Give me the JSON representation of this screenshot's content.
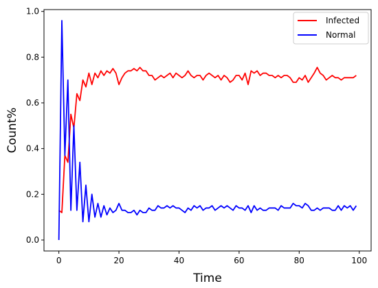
{
  "chart_data": {
    "type": "line",
    "title": "",
    "xlabel": "Time",
    "ylabel": "Count%",
    "xlim": [
      -4.95,
      103.95
    ],
    "ylim": [
      -0.048,
      1.008
    ],
    "xticks": [
      0,
      20,
      40,
      60,
      80,
      100
    ],
    "yticks": [
      0.0,
      0.2,
      0.4,
      0.6,
      0.8,
      1.0
    ],
    "xtick_labels": [
      "0",
      "20",
      "40",
      "60",
      "80",
      "100"
    ],
    "ytick_labels": [
      "0.0",
      "0.2",
      "0.4",
      "0.6",
      "0.8",
      "1.0"
    ],
    "grid": false,
    "legend_position": "top-right",
    "series": [
      {
        "name": "Infected",
        "color": "#ff0000",
        "x": [
          0,
          1,
          2,
          3,
          4,
          5,
          6,
          7,
          8,
          9,
          10,
          11,
          12,
          13,
          14,
          15,
          16,
          17,
          18,
          19,
          20,
          21,
          22,
          23,
          24,
          25,
          26,
          27,
          28,
          29,
          30,
          31,
          32,
          33,
          34,
          35,
          36,
          37,
          38,
          39,
          40,
          41,
          42,
          43,
          44,
          45,
          46,
          47,
          48,
          49,
          50,
          51,
          52,
          53,
          54,
          55,
          56,
          57,
          58,
          59,
          60,
          61,
          62,
          63,
          64,
          65,
          66,
          67,
          68,
          69,
          70,
          71,
          72,
          73,
          74,
          75,
          76,
          77,
          78,
          79,
          80,
          81,
          82,
          83,
          84,
          85,
          86,
          87,
          88,
          89,
          90,
          91,
          92,
          93,
          94,
          95,
          96,
          97,
          98,
          99
        ],
        "y": [
          0.13,
          0.12,
          0.37,
          0.34,
          0.55,
          0.49,
          0.64,
          0.61,
          0.7,
          0.67,
          0.73,
          0.68,
          0.73,
          0.71,
          0.74,
          0.72,
          0.74,
          0.73,
          0.75,
          0.73,
          0.68,
          0.71,
          0.73,
          0.74,
          0.74,
          0.75,
          0.74,
          0.755,
          0.74,
          0.74,
          0.72,
          0.72,
          0.7,
          0.71,
          0.72,
          0.71,
          0.72,
          0.73,
          0.71,
          0.73,
          0.72,
          0.71,
          0.72,
          0.74,
          0.72,
          0.71,
          0.72,
          0.72,
          0.7,
          0.72,
          0.73,
          0.72,
          0.71,
          0.72,
          0.7,
          0.72,
          0.71,
          0.69,
          0.7,
          0.72,
          0.72,
          0.7,
          0.73,
          0.68,
          0.74,
          0.73,
          0.74,
          0.72,
          0.73,
          0.73,
          0.72,
          0.72,
          0.71,
          0.72,
          0.71,
          0.72,
          0.72,
          0.71,
          0.69,
          0.69,
          0.71,
          0.7,
          0.72,
          0.69,
          0.71,
          0.73,
          0.755,
          0.73,
          0.72,
          0.7,
          0.71,
          0.72,
          0.71,
          0.71,
          0.7,
          0.71,
          0.71,
          0.71,
          0.71,
          0.72
        ]
      },
      {
        "name": "Normal",
        "color": "#0000ff",
        "x": [
          0,
          1,
          2,
          3,
          4,
          5,
          6,
          7,
          8,
          9,
          10,
          11,
          12,
          13,
          14,
          15,
          16,
          17,
          18,
          19,
          20,
          21,
          22,
          23,
          24,
          25,
          26,
          27,
          28,
          29,
          30,
          31,
          32,
          33,
          34,
          35,
          36,
          37,
          38,
          39,
          40,
          41,
          42,
          43,
          44,
          45,
          46,
          47,
          48,
          49,
          50,
          51,
          52,
          53,
          54,
          55,
          56,
          57,
          58,
          59,
          60,
          61,
          62,
          63,
          64,
          65,
          66,
          67,
          68,
          69,
          70,
          71,
          72,
          73,
          74,
          75,
          76,
          77,
          78,
          79,
          80,
          81,
          82,
          83,
          84,
          85,
          86,
          87,
          88,
          89,
          90,
          91,
          92,
          93,
          94,
          95,
          96,
          97,
          98,
          99
        ],
        "y": [
          0.0,
          0.96,
          0.37,
          0.7,
          0.13,
          0.5,
          0.13,
          0.34,
          0.08,
          0.24,
          0.08,
          0.2,
          0.1,
          0.16,
          0.1,
          0.15,
          0.11,
          0.14,
          0.12,
          0.13,
          0.16,
          0.13,
          0.13,
          0.12,
          0.12,
          0.13,
          0.11,
          0.13,
          0.12,
          0.12,
          0.14,
          0.13,
          0.13,
          0.15,
          0.14,
          0.14,
          0.15,
          0.14,
          0.15,
          0.14,
          0.14,
          0.13,
          0.12,
          0.14,
          0.13,
          0.15,
          0.14,
          0.15,
          0.13,
          0.14,
          0.14,
          0.15,
          0.13,
          0.14,
          0.15,
          0.14,
          0.15,
          0.14,
          0.13,
          0.15,
          0.14,
          0.14,
          0.13,
          0.15,
          0.12,
          0.15,
          0.13,
          0.14,
          0.13,
          0.13,
          0.14,
          0.14,
          0.14,
          0.13,
          0.15,
          0.14,
          0.14,
          0.14,
          0.16,
          0.15,
          0.15,
          0.14,
          0.16,
          0.15,
          0.13,
          0.13,
          0.14,
          0.13,
          0.14,
          0.14,
          0.14,
          0.13,
          0.13,
          0.15,
          0.13,
          0.15,
          0.14,
          0.15,
          0.13,
          0.15
        ]
      }
    ]
  }
}
